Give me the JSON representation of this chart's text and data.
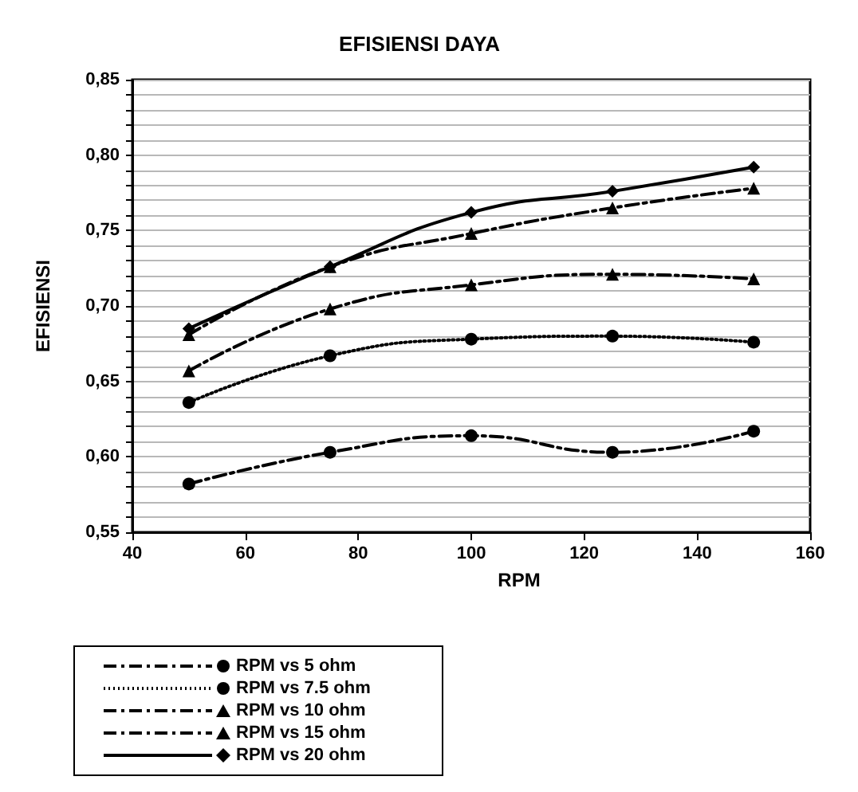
{
  "chart_data": {
    "type": "line",
    "title": "EFISIENSI DAYA",
    "xlabel": "RPM",
    "ylabel": "EFISIENSI",
    "x": [
      50,
      75,
      100,
      125,
      150
    ],
    "series": [
      {
        "name": "RPM vs 5 ohm",
        "color": "#000000",
        "values": [
          0.582,
          0.603,
          0.614,
          0.603,
          0.617
        ],
        "marker": "circle",
        "line_style": "dashed"
      },
      {
        "name": "RPM vs 7.5 ohm",
        "color": "#000000",
        "values": [
          0.636,
          0.667,
          0.678,
          0.68,
          0.676
        ],
        "marker": "circle",
        "line_style": "dotted"
      },
      {
        "name": "RPM vs 10 ohm",
        "color": "#000000",
        "values": [
          0.657,
          0.698,
          0.714,
          0.721,
          0.718
        ],
        "marker": "triangle",
        "line_style": "dashed"
      },
      {
        "name": "RPM vs 15 ohm",
        "color": "#000000",
        "values": [
          0.681,
          0.726,
          0.748,
          0.765,
          0.778
        ],
        "marker": "triangle",
        "line_style": "dashed"
      },
      {
        "name": "RPM vs 20 ohm",
        "color": "#000000",
        "values": [
          0.685,
          0.726,
          0.762,
          0.776,
          0.792
        ],
        "marker": "diamond",
        "line_style": "solid"
      }
    ],
    "xlim": [
      40,
      160
    ],
    "xticks": [
      40,
      60,
      80,
      100,
      120,
      140,
      160
    ],
    "ylim": [
      0.55,
      0.85
    ],
    "yticks": [
      {
        "value": 0.55,
        "label": "0,55"
      },
      {
        "value": 0.56,
        "label": null
      },
      {
        "value": 0.57,
        "label": null
      },
      {
        "value": 0.58,
        "label": null
      },
      {
        "value": 0.59,
        "label": null
      },
      {
        "value": 0.6,
        "label": "0,60"
      },
      {
        "value": 0.61,
        "label": null
      },
      {
        "value": 0.62,
        "label": null
      },
      {
        "value": 0.63,
        "label": null
      },
      {
        "value": 0.64,
        "label": null
      },
      {
        "value": 0.65,
        "label": "0,65"
      },
      {
        "value": 0.66,
        "label": null
      },
      {
        "value": 0.67,
        "label": null
      },
      {
        "value": 0.68,
        "label": null
      },
      {
        "value": 0.69,
        "label": null
      },
      {
        "value": 0.7,
        "label": "0,70"
      },
      {
        "value": 0.71,
        "label": null
      },
      {
        "value": 0.72,
        "label": null
      },
      {
        "value": 0.73,
        "label": null
      },
      {
        "value": 0.74,
        "label": null
      },
      {
        "value": 0.75,
        "label": "0,75"
      },
      {
        "value": 0.76,
        "label": null
      },
      {
        "value": 0.77,
        "label": null
      },
      {
        "value": 0.78,
        "label": null
      },
      {
        "value": 0.79,
        "label": null
      },
      {
        "value": 0.8,
        "label": "0,80"
      },
      {
        "value": 0.81,
        "label": null
      },
      {
        "value": 0.82,
        "label": null
      },
      {
        "value": 0.83,
        "label": null
      },
      {
        "value": 0.84,
        "label": null
      },
      {
        "value": 0.85,
        "label": "0,85"
      }
    ],
    "grid": "y",
    "legend": "bottom left"
  }
}
